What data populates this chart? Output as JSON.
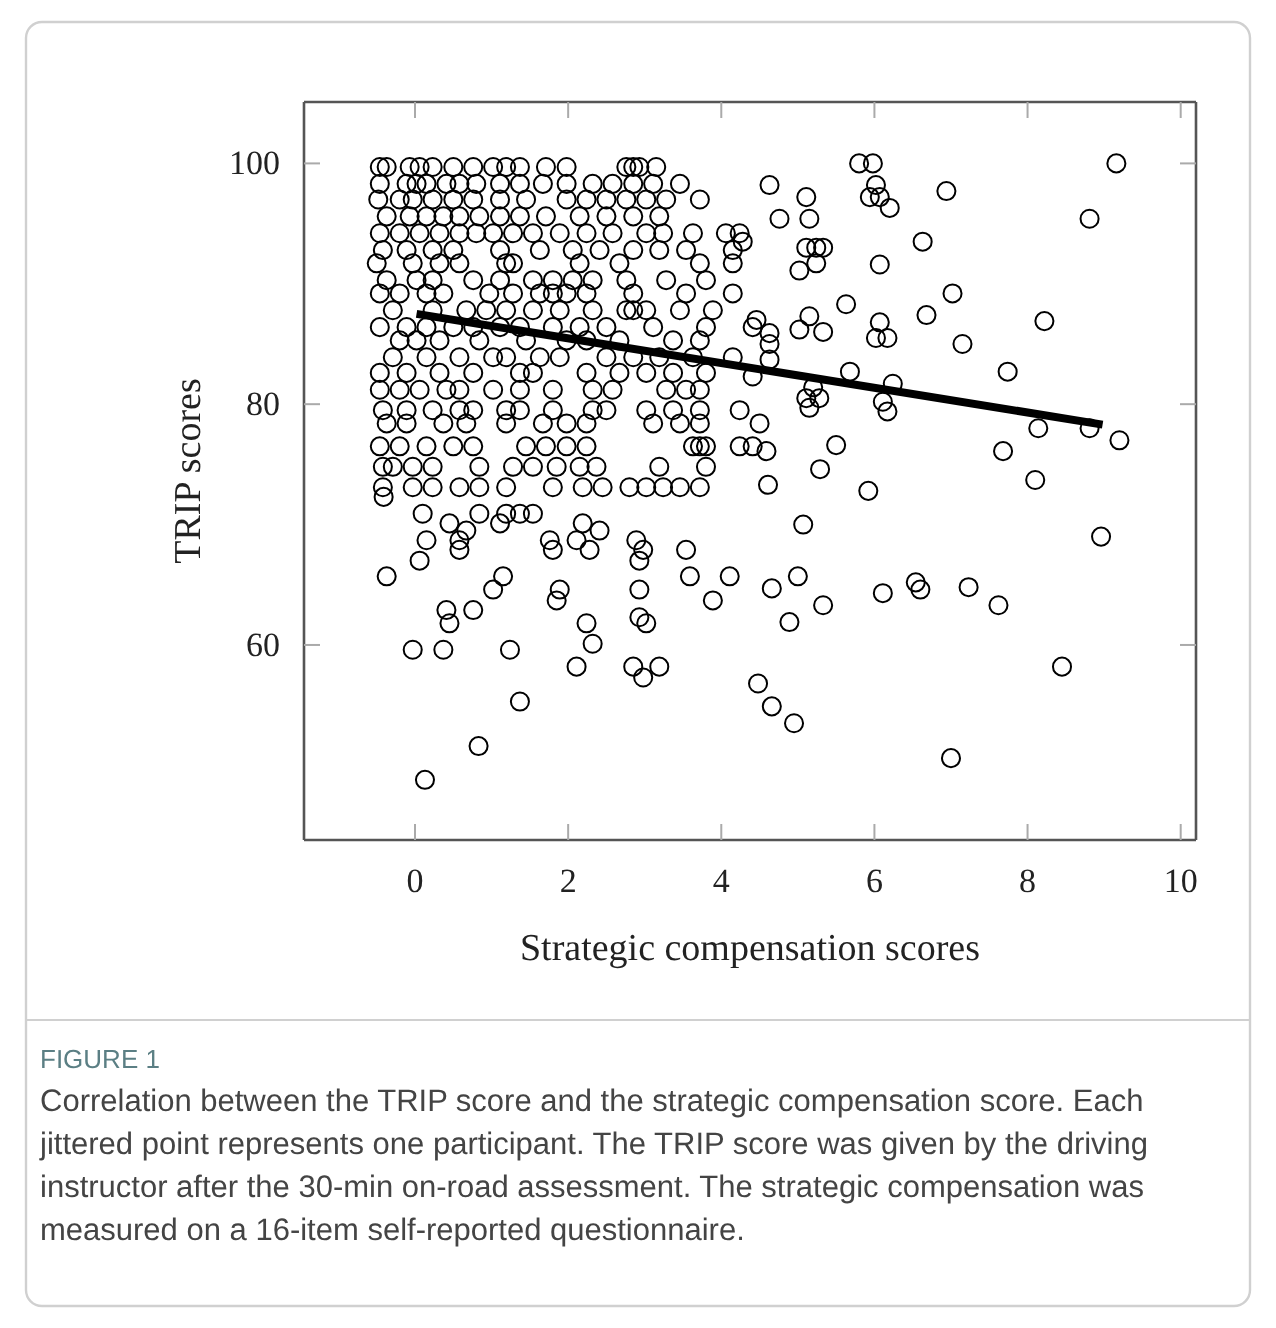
{
  "chart_data": {
    "type": "scatter",
    "xlabel": "Strategic compensation scores",
    "ylabel": "TRIP scores",
    "xlim": [
      -1.45,
      10.2
    ],
    "ylim": [
      43.8,
      105.1
    ],
    "xticks": [
      0,
      2,
      4,
      6,
      8,
      10
    ],
    "yticks": [
      60,
      80,
      100
    ],
    "grid": false,
    "annotations": [
      "FIGURE 1",
      "Correlation between the TRIP score and the strategic compensation score. Each jittered point represents one participant. The TRIP score was given by the driving instructor after the 30-min on-road assessment. The strategic compensation was measured on a 16-item self-reported questionnaire."
    ],
    "series": [
      {
        "marker": "circle",
        "color": "#000000",
        "x": [
          -0.46,
          -0.37,
          -0.07,
          0.06,
          0.23,
          0.5,
          0.76,
          1.02,
          1.19,
          1.37,
          1.71,
          1.98,
          2.76,
          2.85,
          2.93,
          3.15,
          -0.46,
          -0.11,
          0.02,
          0.15,
          0.41,
          0.58,
          0.8,
          1.11,
          1.37,
          1.67,
          1.98,
          2.32,
          2.58,
          2.85,
          3.11,
          3.46,
          -0.48,
          -0.2,
          -0.03,
          0.23,
          0.5,
          0.76,
          1.11,
          1.45,
          1.98,
          2.24,
          2.5,
          2.76,
          3.02,
          3.28,
          3.72,
          -0.37,
          -0.07,
          0.15,
          0.37,
          0.58,
          0.84,
          1.11,
          1.37,
          1.71,
          2.15,
          2.5,
          2.85,
          3.19,
          -0.46,
          -0.2,
          0.06,
          0.32,
          0.58,
          0.8,
          1.02,
          1.28,
          1.54,
          1.89,
          2.24,
          2.58,
          3.02,
          3.24,
          3.63,
          4.06,
          4.24,
          -0.42,
          -0.11,
          0.23,
          0.5,
          1.11,
          1.63,
          2.06,
          2.41,
          2.85,
          3.19,
          3.54,
          4.15,
          -0.5,
          -0.03,
          0.32,
          0.58,
          1.19,
          1.28,
          2.15,
          2.67,
          3.72,
          4.15,
          -0.37,
          0.02,
          0.23,
          0.76,
          1.11,
          1.54,
          1.8,
          2.06,
          2.32,
          2.76,
          3.28,
          3.8,
          -0.46,
          -0.2,
          0.15,
          0.37,
          0.97,
          1.28,
          1.63,
          1.8,
          1.98,
          2.24,
          2.85,
          3.54,
          4.15,
          -0.29,
          0.23,
          0.67,
          0.93,
          1.19,
          1.54,
          1.89,
          2.32,
          2.76,
          2.85,
          3.02,
          3.46,
          3.89,
          -0.46,
          -0.11,
          0.15,
          0.5,
          0.76,
          1.11,
          1.37,
          1.8,
          2.15,
          2.5,
          3.11,
          3.8,
          4.41,
          -0.2,
          0.02,
          0.32,
          0.84,
          1.45,
          1.98,
          2.24,
          2.67,
          3.37,
          3.72,
          -0.29,
          0.15,
          0.58,
          1.02,
          1.19,
          1.63,
          1.89,
          2.5,
          2.85,
          3.19,
          3.63,
          4.15,
          -0.46,
          -0.11,
          0.32,
          0.76,
          1.37,
          1.54,
          2.24,
          2.67,
          3.02,
          3.37,
          3.8,
          -0.46,
          -0.2,
          0.06,
          0.41,
          0.58,
          1.02,
          1.37,
          1.8,
          2.32,
          2.58,
          3.28,
          3.54,
          3.72,
          5.8,
          5.98,
          9.16,
          4.63,
          5.11,
          5.94,
          6.07,
          6.02,
          6.2,
          6.94,
          4.76,
          5.15,
          8.81,
          4.28,
          5.11,
          5.24,
          5.33,
          6.63,
          5.02,
          5.24,
          6.07,
          7.02,
          4.46,
          4.63,
          4.63,
          5.02,
          5.15,
          5.33,
          5.63,
          6.07,
          6.02,
          6.17,
          6.68,
          7.15,
          8.22,
          4.63,
          5.68,
          6.24,
          7.74,
          4.41,
          -0.42,
          -0.11,
          0.23,
          0.58,
          0.76,
          1.19,
          1.37,
          1.8,
          2.32,
          2.5,
          3.02,
          3.37,
          3.72,
          4.24,
          -0.37,
          -0.11,
          0.37,
          0.67,
          1.19,
          1.67,
          1.98,
          2.24,
          3.11,
          3.46,
          3.72,
          4.5,
          -0.46,
          -0.2,
          0.15,
          0.5,
          0.76,
          1.45,
          1.71,
          1.98,
          2.24,
          3.63,
          3.72,
          3.8,
          4.24,
          4.41,
          -0.42,
          -0.29,
          -0.03,
          0.23,
          0.84,
          1.28,
          1.54,
          1.85,
          2.15,
          2.37,
          3.19,
          3.8,
          -0.42,
          -0.03,
          0.23,
          0.58,
          0.84,
          1.19,
          1.8,
          2.19,
          2.45,
          2.8,
          3.02,
          3.24,
          3.46,
          3.72,
          -0.41,
          0.1,
          0.84,
          1.19,
          1.37,
          1.54,
          0.45,
          1.11,
          2.19,
          0.67,
          2.41,
          0.15,
          0.58,
          1.76,
          2.11,
          2.89,
          0.58,
          1.8,
          2.28,
          2.98,
          3.54,
          0.06,
          2.93,
          -0.37,
          1.15,
          3.59,
          4.11,
          1.02,
          1.89,
          2.93,
          1.85,
          3.89,
          0.41,
          0.76,
          2.93,
          0.45,
          2.24,
          3.02,
          2.32,
          -0.03,
          0.37,
          1.24,
          2.11,
          2.85,
          3.19,
          2.98,
          1.37,
          5.2,
          5.11,
          5.15,
          5.28,
          6.11,
          6.17,
          8.14,
          8.81,
          9.2,
          4.59,
          5.5,
          7.68,
          5.29,
          4.61,
          5.92,
          8.1,
          5.07,
          8.96,
          5.0,
          4.66,
          5.33,
          4.89,
          6.11,
          6.54,
          6.6,
          7.23,
          7.62,
          8.45,
          4.48,
          4.66,
          4.95,
          0.13,
          0.83,
          7.0
        ],
        "values": [
          99.7,
          99.7,
          99.7,
          99.7,
          99.7,
          99.7,
          99.7,
          99.7,
          99.7,
          99.7,
          99.7,
          99.7,
          99.7,
          99.7,
          99.7,
          99.7,
          98.3,
          98.3,
          98.3,
          98.3,
          98.3,
          98.3,
          98.3,
          98.3,
          98.3,
          98.3,
          98.3,
          98.3,
          98.3,
          98.3,
          98.3,
          98.3,
          97.0,
          97.0,
          97.0,
          97.0,
          97.0,
          97.0,
          97.0,
          97.0,
          97.0,
          97.0,
          97.0,
          97.0,
          97.0,
          97.0,
          97.0,
          95.6,
          95.6,
          95.6,
          95.6,
          95.6,
          95.6,
          95.6,
          95.6,
          95.6,
          95.6,
          95.6,
          95.6,
          95.6,
          94.2,
          94.2,
          94.2,
          94.2,
          94.2,
          94.2,
          94.2,
          94.2,
          94.2,
          94.2,
          94.2,
          94.2,
          94.2,
          94.2,
          94.2,
          94.2,
          94.2,
          92.8,
          92.8,
          92.8,
          92.8,
          92.8,
          92.8,
          92.8,
          92.8,
          92.8,
          92.8,
          92.8,
          92.8,
          91.7,
          91.7,
          91.7,
          91.7,
          91.7,
          91.7,
          91.7,
          91.7,
          91.7,
          91.7,
          90.3,
          90.3,
          90.3,
          90.3,
          90.3,
          90.3,
          90.3,
          90.3,
          90.3,
          90.3,
          90.3,
          90.3,
          89.2,
          89.2,
          89.2,
          89.2,
          89.2,
          89.2,
          89.2,
          89.2,
          89.2,
          89.2,
          89.2,
          89.2,
          89.2,
          87.8,
          87.8,
          87.8,
          87.8,
          87.8,
          87.8,
          87.8,
          87.8,
          87.8,
          87.8,
          87.8,
          87.8,
          87.8,
          86.4,
          86.4,
          86.4,
          86.4,
          86.4,
          86.4,
          86.4,
          86.4,
          86.4,
          86.4,
          86.4,
          86.4,
          86.4,
          85.3,
          85.3,
          85.3,
          85.3,
          85.3,
          85.3,
          85.3,
          85.3,
          85.3,
          85.3,
          83.9,
          83.9,
          83.9,
          83.9,
          83.9,
          83.9,
          83.9,
          83.9,
          83.9,
          83.9,
          83.9,
          83.9,
          82.6,
          82.6,
          82.6,
          82.6,
          82.6,
          82.6,
          82.6,
          82.6,
          82.6,
          82.6,
          82.6,
          81.2,
          81.2,
          81.2,
          81.2,
          81.2,
          81.2,
          81.2,
          81.2,
          81.2,
          81.2,
          81.2,
          81.2,
          81.2,
          100,
          100,
          100,
          98.2,
          97.2,
          97.2,
          97.2,
          98.2,
          96.3,
          97.7,
          95.4,
          95.4,
          95.4,
          93.5,
          93.0,
          93.0,
          93.0,
          93.5,
          91.1,
          91.7,
          91.6,
          89.2,
          87.0,
          85.9,
          85.0,
          86.2,
          87.3,
          86.0,
          88.3,
          86.8,
          85.5,
          85.5,
          87.4,
          85.0,
          86.9,
          83.7,
          82.7,
          81.7,
          82.7,
          82.3,
          79.5,
          79.5,
          79.5,
          79.5,
          79.5,
          79.5,
          79.5,
          79.5,
          79.5,
          79.5,
          79.5,
          79.5,
          79.5,
          79.5,
          78.4,
          78.4,
          78.4,
          78.4,
          78.4,
          78.4,
          78.4,
          78.4,
          78.4,
          78.4,
          78.4,
          78.4,
          76.5,
          76.5,
          76.5,
          76.5,
          76.5,
          76.5,
          76.5,
          76.5,
          76.5,
          76.5,
          76.5,
          76.5,
          76.5,
          76.5,
          74.8,
          74.8,
          74.8,
          74.8,
          74.8,
          74.8,
          74.8,
          74.8,
          74.8,
          74.8,
          74.8,
          74.8,
          73.1,
          73.1,
          73.1,
          73.1,
          73.1,
          73.1,
          73.1,
          73.1,
          73.1,
          73.1,
          73.1,
          73.1,
          73.1,
          73.1,
          72.3,
          70.9,
          70.9,
          70.9,
          70.9,
          70.9,
          70.1,
          70.1,
          70.1,
          69.5,
          69.5,
          68.7,
          68.7,
          68.7,
          68.7,
          68.7,
          67.9,
          67.9,
          67.9,
          67.9,
          67.9,
          67.0,
          67.0,
          65.7,
          65.7,
          65.7,
          65.7,
          64.6,
          64.6,
          64.6,
          63.7,
          63.7,
          62.9,
          62.9,
          62.3,
          61.8,
          61.8,
          61.8,
          60.1,
          59.6,
          59.6,
          59.6,
          58.2,
          58.2,
          58.2,
          57.3,
          55.3,
          81.4,
          80.5,
          79.7,
          80.5,
          80.2,
          79.4,
          78.0,
          78.0,
          77.0,
          76.1,
          76.6,
          76.1,
          74.6,
          73.3,
          72.8,
          73.7,
          70.0,
          69.0,
          65.7,
          64.7,
          63.3,
          61.9,
          64.3,
          65.2,
          64.6,
          64.8,
          63.3,
          58.2,
          56.8,
          54.9,
          53.5,
          48.8,
          51.6,
          50.6
        ]
      },
      {
        "type": "line",
        "color": "#000000",
        "x": [
          0.02,
          8.98
        ],
        "values": [
          87.5,
          78.3
        ]
      }
    ]
  }
}
